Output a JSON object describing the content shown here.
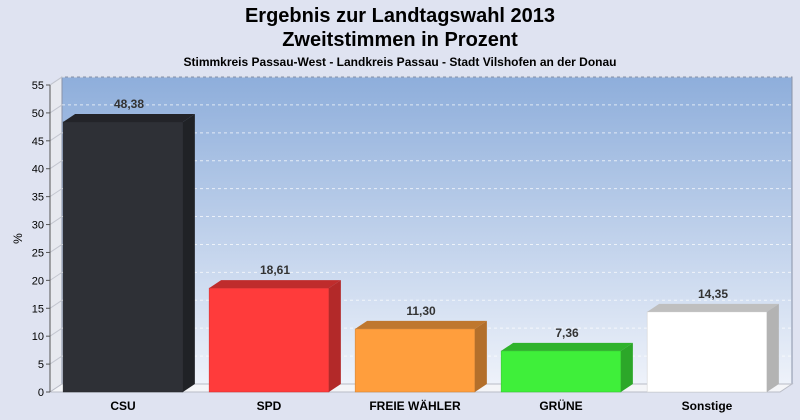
{
  "title": "Ergebnis zur Landtagswahl 2013",
  "subtitle": "Zweitstimmen in Prozent",
  "caption": "Stimmkreis Passau-West - Landkreis Passau - Stadt Vilshofen an der Donau",
  "chart_data": {
    "type": "bar",
    "title": "Ergebnis zur Landtagswahl 2013",
    "subtitle": "Zweitstimmen in Prozent",
    "caption": "Stimmkreis Passau-West - Landkreis Passau - Stadt Vilshofen an der Donau",
    "xlabel": "",
    "ylabel": "%",
    "ylim": [
      0,
      55
    ],
    "yticks": [
      0,
      5,
      10,
      15,
      20,
      25,
      30,
      35,
      40,
      45,
      50,
      55
    ],
    "grid": true,
    "categories": [
      "CSU",
      "SPD",
      "FREIE WÄHLER",
      "GRÜNE",
      "Sonstige"
    ],
    "values": [
      48.38,
      18.61,
      11.3,
      7.36,
      14.35
    ],
    "labels": [
      "48,38",
      "18,61",
      "11,30",
      "7,36",
      "14,35"
    ],
    "colors": [
      "#2e3036",
      "#ff3b3b",
      "#ff9e3d",
      "#3fef3a",
      "#ffffff"
    ]
  }
}
